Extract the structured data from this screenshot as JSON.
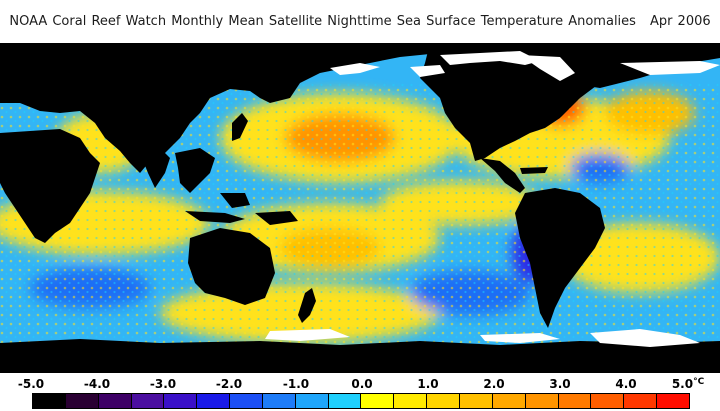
{
  "header": {
    "title": "NOAA Coral Reef Watch Monthly Mean Satellite Nighttime Sea Surface Temperature Anomalies",
    "date": "Apr 2006"
  },
  "legend": {
    "tick_labels": [
      "-5.0",
      "-4.0",
      "-3.0",
      "-2.0",
      "-1.0",
      "0.0",
      "1.0",
      "2.0",
      "3.0",
      "4.0",
      "5.0"
    ],
    "unit": "°C",
    "color_steps": [
      "#000000",
      "#2a0033",
      "#3d0066",
      "#4b0ea0",
      "#3a10c8",
      "#1a1ae8",
      "#1c4ff5",
      "#1e7cf8",
      "#1fa6fb",
      "#1fd0fd",
      "#ffff00",
      "#ffea00",
      "#ffd400",
      "#ffc000",
      "#ffa800",
      "#ff9400",
      "#ff7a00",
      "#ff5e00",
      "#ff3800",
      "#ff0d00"
    ]
  },
  "map": {
    "colors": {
      "land": "#000000",
      "ice": "#ffffff",
      "ocean_neutral": "#33b5f5",
      "ocean_warm": "#ffe21f",
      "ocean_hot": "#ff9400",
      "ocean_cool": "#1e6ef5",
      "ocean_cold": "#2a2ae6"
    }
  }
}
